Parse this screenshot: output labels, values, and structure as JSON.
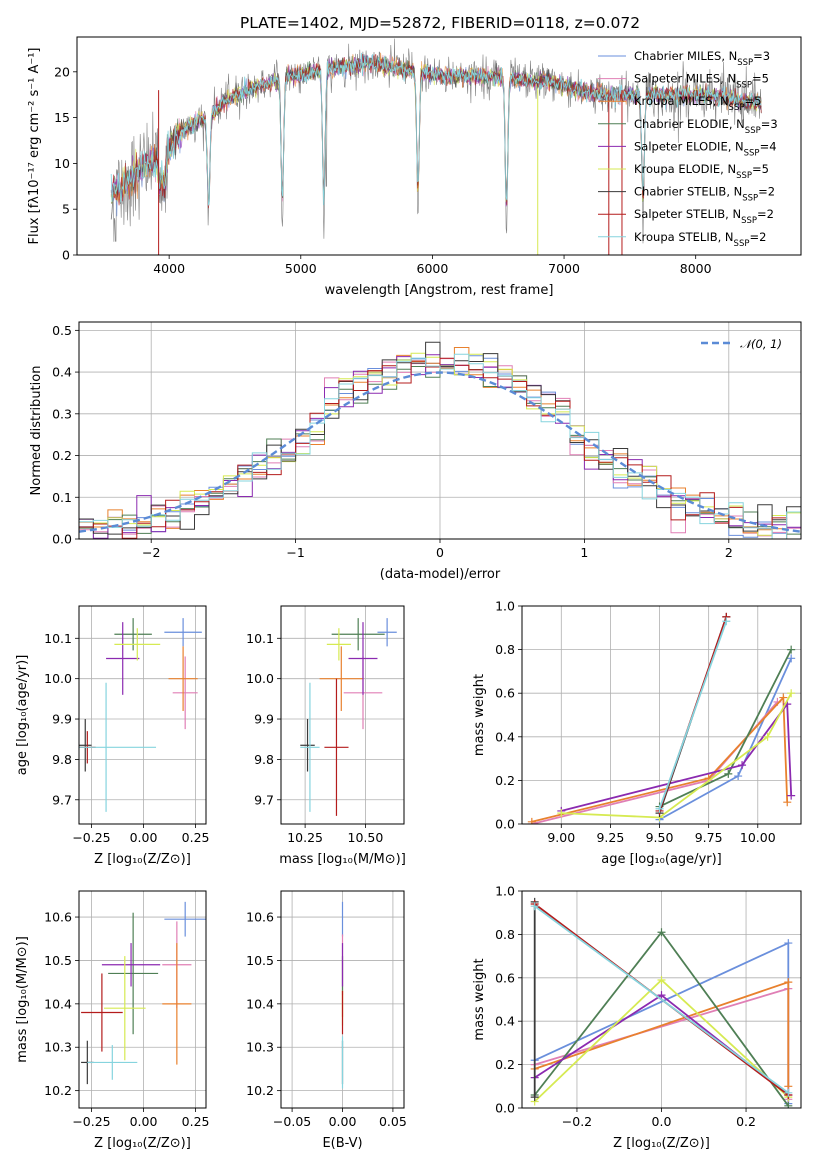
{
  "title": "PLATE=1402, MJD=52872, FIBERID=0118, z=0.072",
  "colors": {
    "Chabrier MILES": "#6a8fdc",
    "Salpeter MILES": "#e07fb5",
    "Kroupa MILES": "#e8812e",
    "Chabrier ELODIE": "#4f7f55",
    "Salpeter ELODIE": "#8b2ab0",
    "Kroupa ELODIE": "#d6ea52",
    "Chabrier STELIB": "#3a3a3a",
    "Salpeter STELIB": "#b41c1c",
    "Kroupa STELIB": "#86d4de",
    "data": "#808080",
    "normal": "#5b8bd6"
  },
  "chart_data": [
    {
      "id": "spectrum",
      "type": "line",
      "xlabel": "wavelength [Angstrom, rest frame]",
      "ylabel": "Flux [f_λ10^-17 erg cm^-2 s^-1 A^-1]",
      "xlim": [
        3300,
        8800
      ],
      "ylim": [
        0,
        23.8
      ],
      "xticks": [
        4000,
        5000,
        6000,
        7000,
        8000
      ],
      "yticks": [
        0,
        5,
        10,
        15,
        20
      ],
      "legend_position": "top-right",
      "legend": [
        "Chabrier MILES, N_SSP=3",
        "Salpeter MILES, N_SSP=5",
        "Kroupa MILES, N_SSP=5",
        "Chabrier ELODIE, N_SSP=3",
        "Salpeter ELODIE, N_SSP=4",
        "Kroupa ELODIE, N_SSP=5",
        "Chabrier STELIB, N_SSP=2",
        "Salpeter STELIB, N_SSP=2",
        "Kroupa STELIB, N_SSP=2"
      ],
      "continuum": {
        "x": [
          3550,
          3650,
          3750,
          3850,
          3950,
          4000,
          4100,
          4200,
          4300,
          4400,
          4500,
          4700,
          4900,
          5100,
          5300,
          5500,
          5700,
          5900,
          6100,
          6300,
          6500,
          6700,
          6900,
          7100,
          7300,
          7500,
          7700,
          7900,
          8100,
          8300,
          8500
        ],
        "y": [
          6.5,
          7.5,
          9.0,
          10.0,
          10.5,
          12.0,
          13.5,
          14.5,
          15.0,
          16.5,
          17.5,
          18.5,
          19.5,
          20.0,
          20.5,
          21.0,
          20.5,
          20.0,
          19.5,
          19.5,
          19.5,
          19.0,
          19.0,
          18.0,
          17.5,
          17.5,
          17.5,
          17.5,
          17.5,
          17.0,
          16.5
        ]
      }
    },
    {
      "id": "residuals",
      "type": "line",
      "xlabel": "(data-model)/error",
      "ylabel": "Normed distribution",
      "xlim": [
        -2.5,
        2.5
      ],
      "ylim": [
        0,
        0.52
      ],
      "xticks": [
        -2,
        -1,
        0,
        1,
        2
      ],
      "yticks": [
        0.0,
        0.1,
        0.2,
        0.3,
        0.4,
        0.5
      ],
      "legend_position": "top-right",
      "legend": [
        "𝒩(0, 1)"
      ],
      "gaussian": {
        "mean": 0,
        "sigma": 1
      }
    },
    {
      "id": "age-vs-Z",
      "type": "scatter",
      "xlabel": "Z [log10(Z/Z⊙)]",
      "ylabel": "age [log10(age/yr)]",
      "xlim": [
        -0.31,
        0.3
      ],
      "ylim": [
        9.64,
        10.18
      ],
      "xticks": [
        -0.25,
        0.0,
        0.25
      ],
      "yticks": [
        9.7,
        9.8,
        9.9,
        10.0,
        10.1
      ],
      "points": [
        {
          "model": "Chabrier MILES",
          "x": 0.19,
          "y": 10.115,
          "xerr": 0.09,
          "yerr": 0.035
        },
        {
          "model": "Salpeter MILES",
          "x": 0.2,
          "y": 9.965,
          "xerr": 0.06,
          "yerr": 0.09
        },
        {
          "model": "Kroupa MILES",
          "x": 0.19,
          "y": 10.0,
          "xerr": 0.07,
          "yerr": 0.08
        },
        {
          "model": "Chabrier ELODIE",
          "x": -0.05,
          "y": 10.11,
          "xerr": 0.09,
          "yerr": 0.04
        },
        {
          "model": "Salpeter ELODIE",
          "x": -0.1,
          "y": 10.05,
          "xerr": 0.08,
          "yerr": 0.09
        },
        {
          "model": "Kroupa ELODIE",
          "x": -0.03,
          "y": 10.085,
          "xerr": 0.11,
          "yerr": 0.04
        },
        {
          "model": "Chabrier STELIB",
          "x": -0.28,
          "y": 9.835,
          "xerr": 0.03,
          "yerr": 0.065
        },
        {
          "model": "Salpeter STELIB",
          "x": -0.27,
          "y": 9.83,
          "xerr": 0.04,
          "yerr": 0.04
        },
        {
          "model": "Kroupa STELIB",
          "x": -0.18,
          "y": 9.83,
          "xerr": 0.24,
          "yerr": 0.16
        }
      ]
    },
    {
      "id": "age-vs-mass",
      "type": "scatter",
      "xlabel": "mass [log10(M/M⊙)]",
      "ylabel": "",
      "xlim": [
        10.15,
        10.66
      ],
      "ylim": [
        9.64,
        10.18
      ],
      "xticks": [
        10.25,
        10.5
      ],
      "yticks": [
        9.7,
        9.8,
        9.9,
        10.0,
        10.1
      ],
      "points": [
        {
          "model": "Chabrier MILES",
          "x": 10.59,
          "y": 10.115,
          "xerr": 0.04,
          "yerr": 0.035
        },
        {
          "model": "Salpeter MILES",
          "x": 10.49,
          "y": 9.965,
          "xerr": 0.08,
          "yerr": 0.09
        },
        {
          "model": "Kroupa MILES",
          "x": 10.4,
          "y": 10.0,
          "xerr": 0.09,
          "yerr": 0.08
        },
        {
          "model": "Chabrier ELODIE",
          "x": 10.47,
          "y": 10.11,
          "xerr": 0.11,
          "yerr": 0.04
        },
        {
          "model": "Salpeter ELODIE",
          "x": 10.49,
          "y": 10.05,
          "xerr": 0.06,
          "yerr": 0.09
        },
        {
          "model": "Kroupa ELODIE",
          "x": 10.39,
          "y": 10.085,
          "xerr": 0.05,
          "yerr": 0.04
        },
        {
          "model": "Chabrier STELIB",
          "x": 10.26,
          "y": 9.835,
          "xerr": 0.03,
          "yerr": 0.065
        },
        {
          "model": "Salpeter STELIB",
          "x": 10.38,
          "y": 9.83,
          "xerr": 0.05,
          "yerr": 0.17
        },
        {
          "model": "Kroupa STELIB",
          "x": 10.27,
          "y": 9.83,
          "xerr": 0.04,
          "yerr": 0.16
        }
      ]
    },
    {
      "id": "weight-vs-age",
      "type": "line",
      "xlabel": "age [log10(age/yr)]",
      "ylabel": "mass weight",
      "xlim": [
        8.8,
        10.22
      ],
      "ylim": [
        0,
        1.0
      ],
      "xticks": [
        9.0,
        9.25,
        9.5,
        9.75,
        10.0
      ],
      "yticks": [
        0.0,
        0.2,
        0.4,
        0.6,
        0.8,
        1.0
      ],
      "series": [
        {
          "model": "Chabrier MILES",
          "x": [
            9.5,
            9.9,
            10.17
          ],
          "y": [
            0.02,
            0.22,
            0.76
          ]
        },
        {
          "model": "Salpeter MILES",
          "x": [
            8.85,
            9.75,
            10.1
          ],
          "y": [
            0.0,
            0.2,
            0.56
          ]
        },
        {
          "model": "Kroupa MILES",
          "x": [
            8.85,
            9.75,
            10.13,
            10.15
          ],
          "y": [
            0.01,
            0.21,
            0.58,
            0.1
          ]
        },
        {
          "model": "Chabrier ELODIE",
          "x": [
            9.5,
            9.85,
            10.17
          ],
          "y": [
            0.08,
            0.23,
            0.8
          ]
        },
        {
          "model": "Salpeter ELODIE",
          "x": [
            9.0,
            9.92,
            10.15,
            10.17
          ],
          "y": [
            0.06,
            0.27,
            0.55,
            0.13
          ]
        },
        {
          "model": "Kroupa ELODIE",
          "x": [
            9.0,
            9.5,
            10.05,
            10.17
          ],
          "y": [
            0.05,
            0.03,
            0.4,
            0.6
          ]
        },
        {
          "model": "Chabrier STELIB",
          "x": [
            9.5,
            9.84
          ],
          "y": [
            0.05,
            0.95
          ]
        },
        {
          "model": "Salpeter STELIB",
          "x": [
            9.5,
            9.84
          ],
          "y": [
            0.06,
            0.95
          ]
        },
        {
          "model": "Kroupa STELIB",
          "x": [
            9.5,
            9.84
          ],
          "y": [
            0.07,
            0.93
          ]
        }
      ]
    },
    {
      "id": "mass-vs-Z",
      "type": "scatter",
      "xlabel": "Z [log10(Z/Z⊙)]",
      "ylabel": "mass [log10(M/M⊙)]",
      "xlim": [
        -0.31,
        0.3
      ],
      "ylim": [
        10.16,
        10.66
      ],
      "xticks": [
        -0.25,
        0.0,
        0.25
      ],
      "yticks": [
        10.2,
        10.3,
        10.4,
        10.5,
        10.6
      ],
      "points": [
        {
          "model": "Chabrier MILES",
          "x": 0.2,
          "y": 10.595,
          "xerr": 0.1,
          "yerr": 0.04
        },
        {
          "model": "Salpeter MILES",
          "x": 0.16,
          "y": 10.49,
          "xerr": 0.07,
          "yerr": 0.1
        },
        {
          "model": "Kroupa MILES",
          "x": 0.16,
          "y": 10.4,
          "xerr": 0.07,
          "yerr": 0.14
        },
        {
          "model": "Chabrier ELODIE",
          "x": -0.05,
          "y": 10.47,
          "xerr": 0.12,
          "yerr": 0.14
        },
        {
          "model": "Salpeter ELODIE",
          "x": -0.06,
          "y": 10.49,
          "xerr": 0.14,
          "yerr": 0.05
        },
        {
          "model": "Kroupa ELODIE",
          "x": -0.09,
          "y": 10.39,
          "xerr": 0.1,
          "yerr": 0.12
        },
        {
          "model": "Chabrier STELIB",
          "x": -0.27,
          "y": 10.265,
          "xerr": 0.03,
          "yerr": 0.05
        },
        {
          "model": "Salpeter STELIB",
          "x": -0.2,
          "y": 10.38,
          "xerr": 0.1,
          "yerr": 0.09
        },
        {
          "model": "Kroupa STELIB",
          "x": -0.15,
          "y": 10.265,
          "xerr": 0.12,
          "yerr": 0.04
        }
      ]
    },
    {
      "id": "mass-vs-EBV",
      "type": "scatter",
      "xlabel": "E(B-V)",
      "ylabel": "",
      "xlim": [
        -0.061,
        0.061
      ],
      "ylim": [
        10.16,
        10.66
      ],
      "xticks": [
        -0.05,
        0.0,
        0.05
      ],
      "yticks": [
        10.2,
        10.3,
        10.4,
        10.5,
        10.6
      ],
      "points": [
        {
          "model": "Chabrier MILES",
          "x": 0.0,
          "y": 10.595,
          "xerr": 0,
          "yerr": 0.04
        },
        {
          "model": "Salpeter MILES",
          "x": 0.0,
          "y": 10.49,
          "xerr": 0,
          "yerr": 0.07
        },
        {
          "model": "Kroupa MILES",
          "x": 0.0,
          "y": 10.4,
          "xerr": 0,
          "yerr": 0.03
        },
        {
          "model": "Chabrier ELODIE",
          "x": 0.0,
          "y": 10.47,
          "xerr": 0,
          "yerr": 0.04
        },
        {
          "model": "Salpeter ELODIE",
          "x": 0.0,
          "y": 10.49,
          "xerr": 0,
          "yerr": 0.05
        },
        {
          "model": "Kroupa ELODIE",
          "x": 0.0,
          "y": 10.39,
          "xerr": 0,
          "yerr": 0.04
        },
        {
          "model": "Chabrier STELIB",
          "x": 0.0,
          "y": 10.265,
          "xerr": 0,
          "yerr": 0.05
        },
        {
          "model": "Salpeter STELIB",
          "x": 0.0,
          "y": 10.38,
          "xerr": 0,
          "yerr": 0.05
        },
        {
          "model": "Kroupa STELIB",
          "x": 0.0,
          "y": 10.265,
          "xerr": 0,
          "yerr": 0.06
        }
      ]
    },
    {
      "id": "weight-vs-Z",
      "type": "line",
      "xlabel": "Z [log10(Z/Z⊙)]",
      "ylabel": "mass weight",
      "xlim": [
        -0.33,
        0.33
      ],
      "ylim": [
        0,
        1.0
      ],
      "xticks": [
        -0.2,
        0.0,
        0.2
      ],
      "yticks": [
        0.0,
        0.2,
        0.4,
        0.6,
        0.8,
        1.0
      ],
      "series": [
        {
          "model": "Chabrier MILES",
          "x": [
            -0.3,
            0.3,
            0.3
          ],
          "y": [
            0.22,
            0.76,
            0.02
          ]
        },
        {
          "model": "Salpeter MILES",
          "x": [
            -0.3,
            0.3,
            0.3
          ],
          "y": [
            0.2,
            0.55,
            0.04
          ]
        },
        {
          "model": "Kroupa MILES",
          "x": [
            -0.3,
            0.3,
            0.3
          ],
          "y": [
            0.18,
            0.58,
            0.1
          ]
        },
        {
          "model": "Chabrier ELODIE",
          "x": [
            -0.3,
            0.0,
            0.3
          ],
          "y": [
            0.06,
            0.81,
            0.01
          ]
        },
        {
          "model": "Salpeter ELODIE",
          "x": [
            -0.3,
            0.0,
            0.3
          ],
          "y": [
            0.14,
            0.52,
            0.06
          ]
        },
        {
          "model": "Kroupa ELODIE",
          "x": [
            -0.3,
            0.0,
            0.3
          ],
          "y": [
            0.03,
            0.59,
            0.05
          ]
        },
        {
          "model": "Chabrier STELIB",
          "x": [
            -0.3,
            -0.3
          ],
          "y": [
            0.95,
            0.05
          ]
        },
        {
          "model": "Salpeter STELIB",
          "x": [
            -0.3,
            0.3
          ],
          "y": [
            0.94,
            0.06
          ]
        },
        {
          "model": "Kroupa STELIB",
          "x": [
            -0.3,
            0.3
          ],
          "y": [
            0.93,
            0.07
          ]
        }
      ]
    }
  ]
}
